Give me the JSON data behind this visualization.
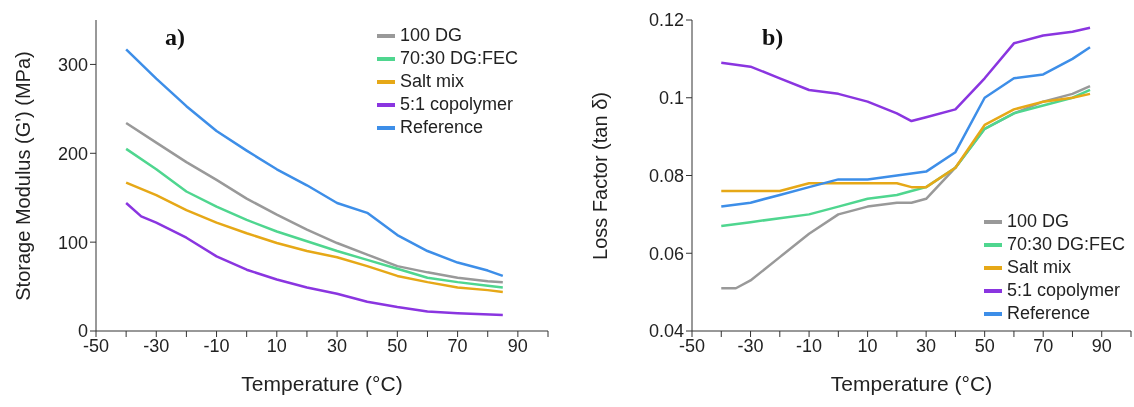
{
  "chart_data": [
    {
      "type": "line",
      "xlabel": "Temperature (°C)",
      "ylabel": "Storage Modulus (G') (MPa)",
      "annotations": [
        "a)"
      ],
      "legend": "top right",
      "line_style": "solid",
      "xlim": [
        -50,
        100
      ],
      "xticks": [
        -50,
        {
          "value": -40,
          "label": null
        },
        -30,
        {
          "value": -20,
          "label": null
        },
        -10,
        {
          "value": 0,
          "label": null
        },
        10,
        {
          "value": 20,
          "label": null
        },
        30,
        {
          "value": 40,
          "label": null
        },
        50,
        {
          "value": 60,
          "label": null
        },
        70,
        {
          "value": 80,
          "label": null
        },
        90,
        {
          "value": 100,
          "label": null
        }
      ],
      "ylim": [
        0,
        350
      ],
      "yticks": [
        0,
        100,
        200,
        300
      ],
      "series": [
        {
          "name": "100 DG",
          "color": "#999999",
          "x": [
            -40,
            -30,
            -20,
            -10,
            0,
            10,
            20,
            30,
            40,
            50,
            60,
            70,
            80,
            85
          ],
          "values": [
            234,
            212,
            190,
            170,
            149,
            131,
            114,
            99,
            86,
            73,
            66,
            60,
            56,
            55
          ]
        },
        {
          "name": "70:30 DG:FEC",
          "color": "#4fd68f",
          "x": [
            -40,
            -30,
            -20,
            -10,
            0,
            10,
            20,
            30,
            40,
            50,
            60,
            70,
            80,
            85
          ],
          "values": [
            205,
            182,
            157,
            140,
            125,
            112,
            101,
            90,
            80,
            70,
            60,
            55,
            51,
            49
          ]
        },
        {
          "name": "Salt mix",
          "color": "#e6a817",
          "x": [
            -40,
            -30,
            -20,
            -10,
            0,
            10,
            20,
            30,
            40,
            50,
            60,
            70,
            80,
            85
          ],
          "values": [
            167,
            153,
            136,
            122,
            110,
            99,
            90,
            83,
            73,
            62,
            55,
            49,
            46,
            44
          ]
        },
        {
          "name": "5:1 copolymer",
          "color": "#8a35e0",
          "x": [
            -40,
            -35,
            -30,
            -20,
            -10,
            0,
            10,
            20,
            30,
            40,
            50,
            60,
            70,
            85
          ],
          "values": [
            144,
            129,
            122,
            105,
            84,
            69,
            58,
            49,
            42,
            33,
            27,
            22,
            20,
            18
          ]
        },
        {
          "name": "Reference",
          "color": "#3d8ee8",
          "x": [
            -40,
            -30,
            -20,
            -10,
            0,
            10,
            20,
            30,
            40,
            50,
            60,
            70,
            80,
            85
          ],
          "values": [
            317,
            284,
            253,
            225,
            203,
            182,
            164,
            144,
            133,
            108,
            90,
            77,
            68,
            62
          ]
        }
      ]
    },
    {
      "type": "line",
      "xlabel": "Temperature (°C)",
      "ylabel": "Loss Factor (tan δ)",
      "annotations": [
        "b)"
      ],
      "legend": "bottom right",
      "line_style": "solid",
      "xlim": [
        -50,
        100
      ],
      "xticks": [
        -50,
        {
          "value": -40,
          "label": null
        },
        -30,
        {
          "value": -20,
          "label": null
        },
        -10,
        {
          "value": 0,
          "label": null
        },
        10,
        {
          "value": 20,
          "label": null
        },
        30,
        {
          "value": 40,
          "label": null
        },
        50,
        {
          "value": 60,
          "label": null
        },
        70,
        {
          "value": 80,
          "label": null
        },
        90,
        {
          "value": 100,
          "label": null
        }
      ],
      "ylim": [
        0.04,
        0.12
      ],
      "yticks": [
        0.04,
        0.06,
        0.08,
        0.1,
        0.12
      ],
      "series": [
        {
          "name": "100 DG",
          "color": "#999999",
          "x": [
            -40,
            -35,
            -30,
            -20,
            -10,
            0,
            10,
            20,
            25,
            30,
            40,
            50,
            60,
            70,
            80,
            86
          ],
          "values": [
            0.051,
            0.051,
            0.053,
            0.059,
            0.065,
            0.07,
            0.072,
            0.073,
            0.073,
            0.074,
            0.082,
            0.092,
            0.096,
            0.099,
            0.101,
            0.103
          ]
        },
        {
          "name": "70:30 DG:FEC",
          "color": "#4fd68f",
          "x": [
            -40,
            -30,
            -20,
            -10,
            0,
            10,
            20,
            25,
            30,
            40,
            50,
            60,
            70,
            80,
            86
          ],
          "values": [
            0.067,
            0.068,
            0.069,
            0.07,
            0.072,
            0.074,
            0.075,
            0.076,
            0.077,
            0.082,
            0.092,
            0.096,
            0.098,
            0.1,
            0.102
          ]
        },
        {
          "name": "Salt mix",
          "color": "#e6a817",
          "x": [
            -40,
            -30,
            -20,
            -10,
            0,
            10,
            20,
            25,
            30,
            40,
            50,
            60,
            70,
            80,
            86
          ],
          "values": [
            0.076,
            0.076,
            0.076,
            0.078,
            0.078,
            0.078,
            0.078,
            0.077,
            0.077,
            0.082,
            0.093,
            0.097,
            0.099,
            0.1,
            0.101
          ]
        },
        {
          "name": "5:1 copolymer",
          "color": "#8a35e0",
          "x": [
            -40,
            -30,
            -20,
            -10,
            0,
            10,
            20,
            25,
            30,
            40,
            50,
            60,
            70,
            80,
            86
          ],
          "values": [
            0.109,
            0.108,
            0.105,
            0.102,
            0.101,
            0.099,
            0.096,
            0.094,
            0.095,
            0.097,
            0.105,
            0.114,
            0.116,
            0.117,
            0.118
          ]
        },
        {
          "name": "Reference",
          "color": "#3d8ee8",
          "x": [
            -40,
            -30,
            -20,
            -10,
            0,
            10,
            20,
            30,
            40,
            50,
            60,
            70,
            80,
            86
          ],
          "values": [
            0.072,
            0.073,
            0.075,
            0.077,
            0.079,
            0.079,
            0.08,
            0.081,
            0.086,
            0.1,
            0.105,
            0.106,
            0.11,
            0.113
          ]
        }
      ]
    }
  ]
}
